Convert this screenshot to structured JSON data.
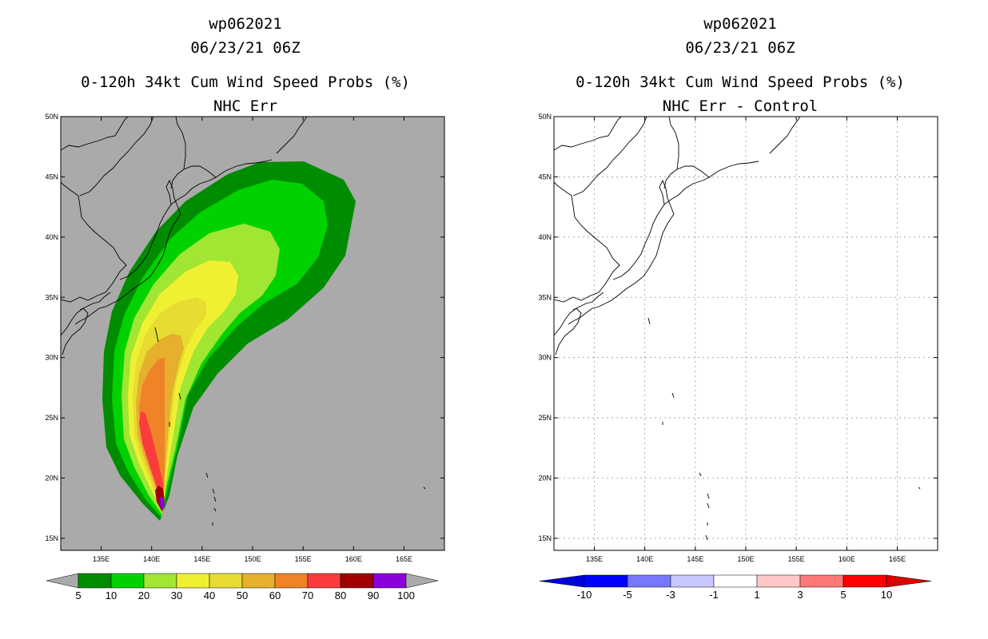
{
  "left": {
    "storm_id": "wp062021",
    "datetime": "06/23/21 06Z",
    "product": "0-120h 34kt Cum Wind Speed Probs (%)",
    "subtitle": "NHC Err",
    "background_color": "#aaaaaa",
    "colorbar": {
      "colors": [
        "#008c00",
        "#00d200",
        "#a0e632",
        "#f0f032",
        "#e6dc32",
        "#e6af2d",
        "#f08228",
        "#fa3c3c",
        "#a00000",
        "#8c00dc"
      ],
      "labels": [
        "5",
        "10",
        "20",
        "30",
        "40",
        "50",
        "60",
        "70",
        "80",
        "90",
        "100"
      ]
    }
  },
  "right": {
    "storm_id": "wp062021",
    "datetime": "06/23/21 06Z",
    "product": "0-120h 34kt Cum Wind Speed Probs (%)",
    "subtitle": "NHC Err - Control",
    "background_color": "#ffffff",
    "colorbar": {
      "colors": [
        "#0000dc",
        "#0000ff",
        "#7878ff",
        "#c8c8ff",
        "#ffffff",
        "#ffc8c8",
        "#ff7878",
        "#ff0000",
        "#dc0000"
      ],
      "labels": [
        "-10",
        "-5",
        "-3",
        "-1",
        "1",
        "3",
        "5",
        "10"
      ]
    }
  },
  "axes": {
    "lon_ticks": [
      "135E",
      "140E",
      "145E",
      "150E",
      "155E",
      "160E",
      "165E"
    ],
    "lat_ticks": [
      "15N",
      "20N",
      "25N",
      "30N",
      "35N",
      "40N",
      "45N",
      "50N"
    ]
  },
  "map_extent": {
    "lon_min": 131,
    "lon_max": 169,
    "lat_min": 14,
    "lat_max": 50
  }
}
